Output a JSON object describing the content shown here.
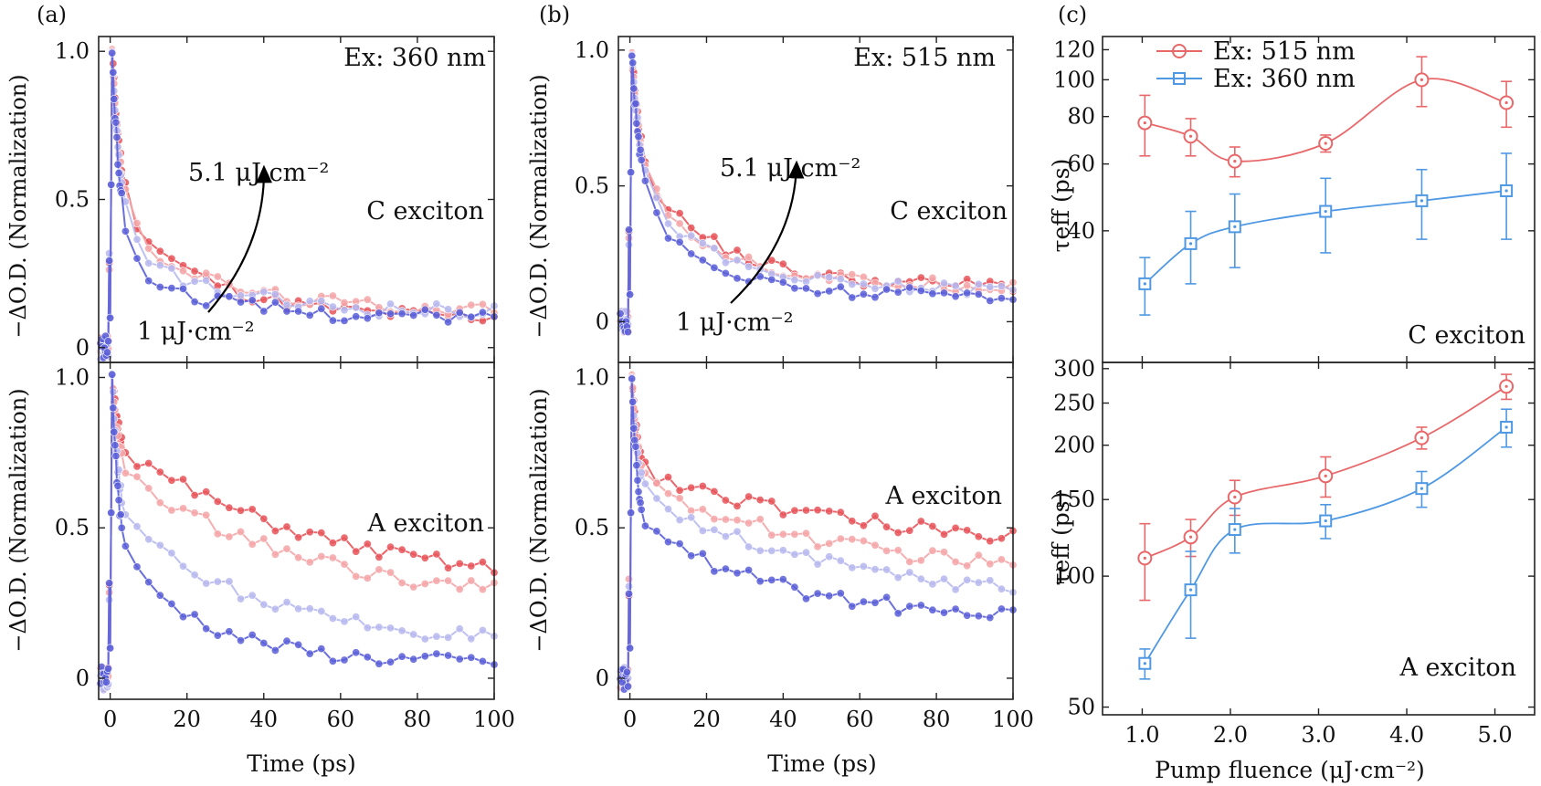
{
  "colors": {
    "red": "#e8555a",
    "blue": "#5a5fd8",
    "red_light": "#f4a6a8",
    "blue_light": "#b7b9ef",
    "red_c": "#e8686a",
    "blue_c": "#4f98e3"
  },
  "chart_data": [
    {
      "type": "line",
      "panel": "(a)",
      "xlabel": "Time (ps)",
      "ylabel": "−ΔO.D. (Normalization)",
      "xlim": [
        -3,
        100
      ],
      "ylim_top": [
        -0.05,
        1.05
      ],
      "ylim_bottom": [
        -0.07,
        1.05
      ],
      "xticks": [
        0,
        20,
        40,
        60,
        80,
        100
      ],
      "yticks": [
        0,
        0.5,
        1.0
      ],
      "ytick_labels": [
        "0",
        "0.5",
        "1.0"
      ],
      "top": {
        "annotations": {
          "excitation": "Ex: 360 nm",
          "exciton": "C exciton",
          "high": "5.1 μJ·cm⁻²",
          "low": "1 μJ·cm⁻²"
        },
        "tail": {
          "start": 0.33,
          "end": 0.12,
          "tau": 22,
          "noise": 0.05
        },
        "series": [
          {
            "name": "5.1 μJ·cm⁻²",
            "level": 0.0,
            "tail_start": 0.5,
            "tail_end": 0.1
          },
          {
            "level": 0.33,
            "tail_start": 0.45,
            "tail_end": 0.13
          },
          {
            "level": 0.66,
            "tail_start": 0.38,
            "tail_end": 0.12
          },
          {
            "name": "1 μJ·cm⁻²",
            "level": 1.0,
            "tail_start": 0.3,
            "tail_end": 0.1
          }
        ]
      },
      "bottom": {
        "annotations": {
          "exciton": "A exciton"
        },
        "series": [
          {
            "level": 0.0,
            "tail_start": 0.78,
            "tail_end": 0.28,
            "tau": 55
          },
          {
            "level": 0.33,
            "tail_start": 0.7,
            "tail_end": 0.23,
            "tau": 50
          },
          {
            "level": 0.66,
            "tail_start": 0.55,
            "tail_end": 0.1,
            "tau": 38
          },
          {
            "level": 1.0,
            "tail_start": 0.45,
            "tail_end": 0.05,
            "tau": 22
          }
        ]
      }
    },
    {
      "type": "line",
      "panel": "(b)",
      "xlabel": "Time (ps)",
      "ylabel": "−ΔO.D. (Normalization)",
      "xlim": [
        -3,
        100
      ],
      "ylim_top": [
        -0.15,
        1.05
      ],
      "ylim_bottom": [
        -0.07,
        1.05
      ],
      "xticks": [
        0,
        20,
        40,
        60,
        80,
        100
      ],
      "yticks": [
        0,
        0.5,
        1.0
      ],
      "ytick_labels": [
        "0",
        "0.5",
        "1.0"
      ],
      "top": {
        "annotations": {
          "excitation": "Ex: 515 nm",
          "exciton": "C exciton",
          "high": "5.1 μJ·cm⁻²",
          "low": "1 μJ·cm⁻²"
        },
        "series": [
          {
            "name": "5.1 μJ·cm⁻²",
            "level": 0.0,
            "tail_start": 0.6,
            "tail_end": 0.13,
            "tau": 20
          },
          {
            "level": 0.33,
            "tail_start": 0.58,
            "tail_end": 0.13,
            "tau": 19
          },
          {
            "level": 0.66,
            "tail_start": 0.55,
            "tail_end": 0.12,
            "tau": 18
          },
          {
            "name": "1 μJ·cm⁻²",
            "level": 1.0,
            "tail_start": 0.5,
            "tail_end": 0.1,
            "tau": 16
          }
        ]
      },
      "bottom": {
        "annotations": {
          "exciton": "A exciton"
        },
        "series": [
          {
            "level": 0.0,
            "tail_start": 0.7,
            "tail_end": 0.42,
            "tau": 60
          },
          {
            "level": 0.33,
            "tail_start": 0.66,
            "tail_end": 0.32,
            "tau": 55
          },
          {
            "level": 0.66,
            "tail_start": 0.62,
            "tail_end": 0.25,
            "tau": 50
          },
          {
            "level": 1.0,
            "tail_start": 0.52,
            "tail_end": 0.18,
            "tau": 40
          }
        ]
      }
    },
    {
      "type": "scatter",
      "panel": "(c)",
      "xlabel": "Pump fluence (μJ·cm⁻²)",
      "xlim": [
        0.55,
        5.45
      ],
      "xticks": [
        1.0,
        2.0,
        3.0,
        4.0,
        5.0
      ],
      "xtick_labels": [
        "1.0",
        "2.0",
        "3.0",
        "4.0",
        "5.0"
      ],
      "legend": {
        "position": "top-left"
      },
      "top": {
        "ylabel": "τeff (ps)",
        "yscale": "log",
        "ylim": [
          18,
          130
        ],
        "yticks": [
          40,
          60,
          80,
          100,
          120
        ],
        "annotations": {
          "exciton": "C exciton"
        },
        "series": [
          {
            "name": "Ex: 515 nm",
            "marker": "circle",
            "x": [
              1.03,
              1.55,
              2.05,
              3.08,
              4.17,
              5.13
            ],
            "y": [
              77,
              71,
              61,
              68,
              100,
              87
            ],
            "err": [
              14,
              8,
              5.5,
              3.5,
              15,
              12
            ]
          },
          {
            "name": "Ex: 360 nm",
            "marker": "square",
            "x": [
              1.03,
              1.55,
              2.05,
              3.08,
              4.17,
              5.13
            ],
            "y": [
              29,
              37,
              41,
              45,
              48,
              51
            ],
            "err": [
              5,
              8,
              9,
              10,
              10,
              13
            ]
          }
        ]
      },
      "bottom": {
        "ylabel": "τeff (ps)",
        "yscale": "log",
        "ylim": [
          48,
          310
        ],
        "yticks": [
          50,
          100,
          150,
          200,
          250,
          300
        ],
        "annotations": {
          "exciton": "A exciton"
        },
        "series": [
          {
            "name": "Ex: 515 nm",
            "marker": "circle",
            "x": [
              1.03,
              1.55,
              2.05,
              3.08,
              4.17,
              5.13
            ],
            "y": [
              110,
              123,
              152,
              170,
              208,
              273
            ],
            "err": [
              22,
              12,
              14,
              18,
              12,
              18
            ]
          },
          {
            "name": "Ex: 360 nm",
            "marker": "square",
            "x": [
              1.03,
              1.55,
              2.05,
              3.08,
              4.17,
              5.13
            ],
            "y": [
              63,
              93,
              128,
              134,
              159,
              220
            ],
            "err": [
              5,
              21,
              15,
              12,
              15,
              22
            ]
          }
        ]
      }
    }
  ]
}
